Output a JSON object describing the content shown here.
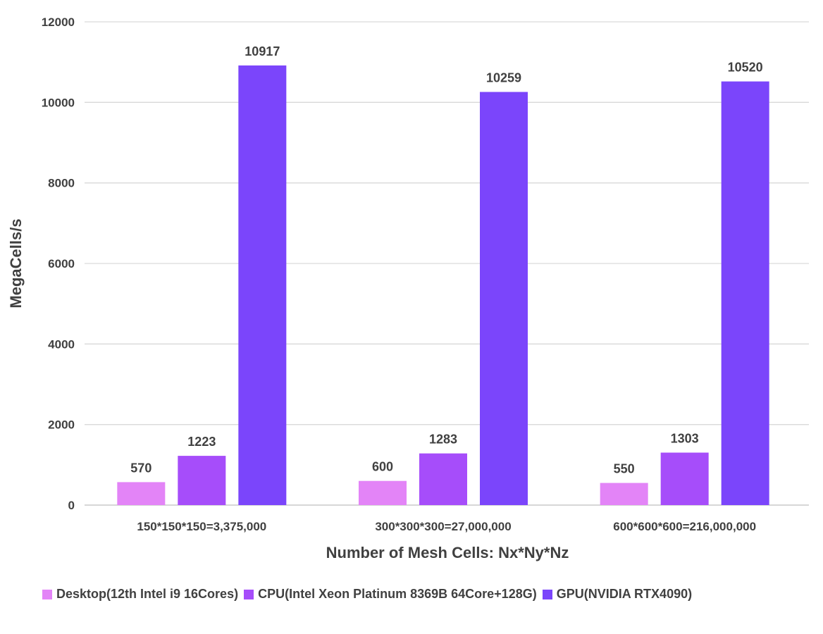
{
  "chart_data": {
    "type": "bar",
    "categories": [
      "150*150*150=3,375,000",
      "300*300*300=27,000,000",
      "600*600*600=216,000,000"
    ],
    "series": [
      {
        "name": "Desktop(12th Intel i9 16Cores)",
        "color": "#e384f7",
        "values": [
          570,
          600,
          550
        ]
      },
      {
        "name": "CPU(Intel Xeon Platinum 8369B 64Core+128G)",
        "color": "#a64dfa",
        "values": [
          1223,
          1283,
          1303
        ]
      },
      {
        "name": "GPU(NVIDIA RTX4090)",
        "color": "#7b45fb",
        "values": [
          10917,
          10259,
          10520
        ]
      }
    ],
    "xlabel": "Number of Mesh Cells: Nx*Ny*Nz",
    "ylabel": "MegaCells/s",
    "ylim": [
      0,
      12000
    ],
    "yticks": [
      0,
      2000,
      4000,
      6000,
      8000,
      10000,
      12000
    ],
    "grid": true,
    "legend_position": "bottom"
  }
}
